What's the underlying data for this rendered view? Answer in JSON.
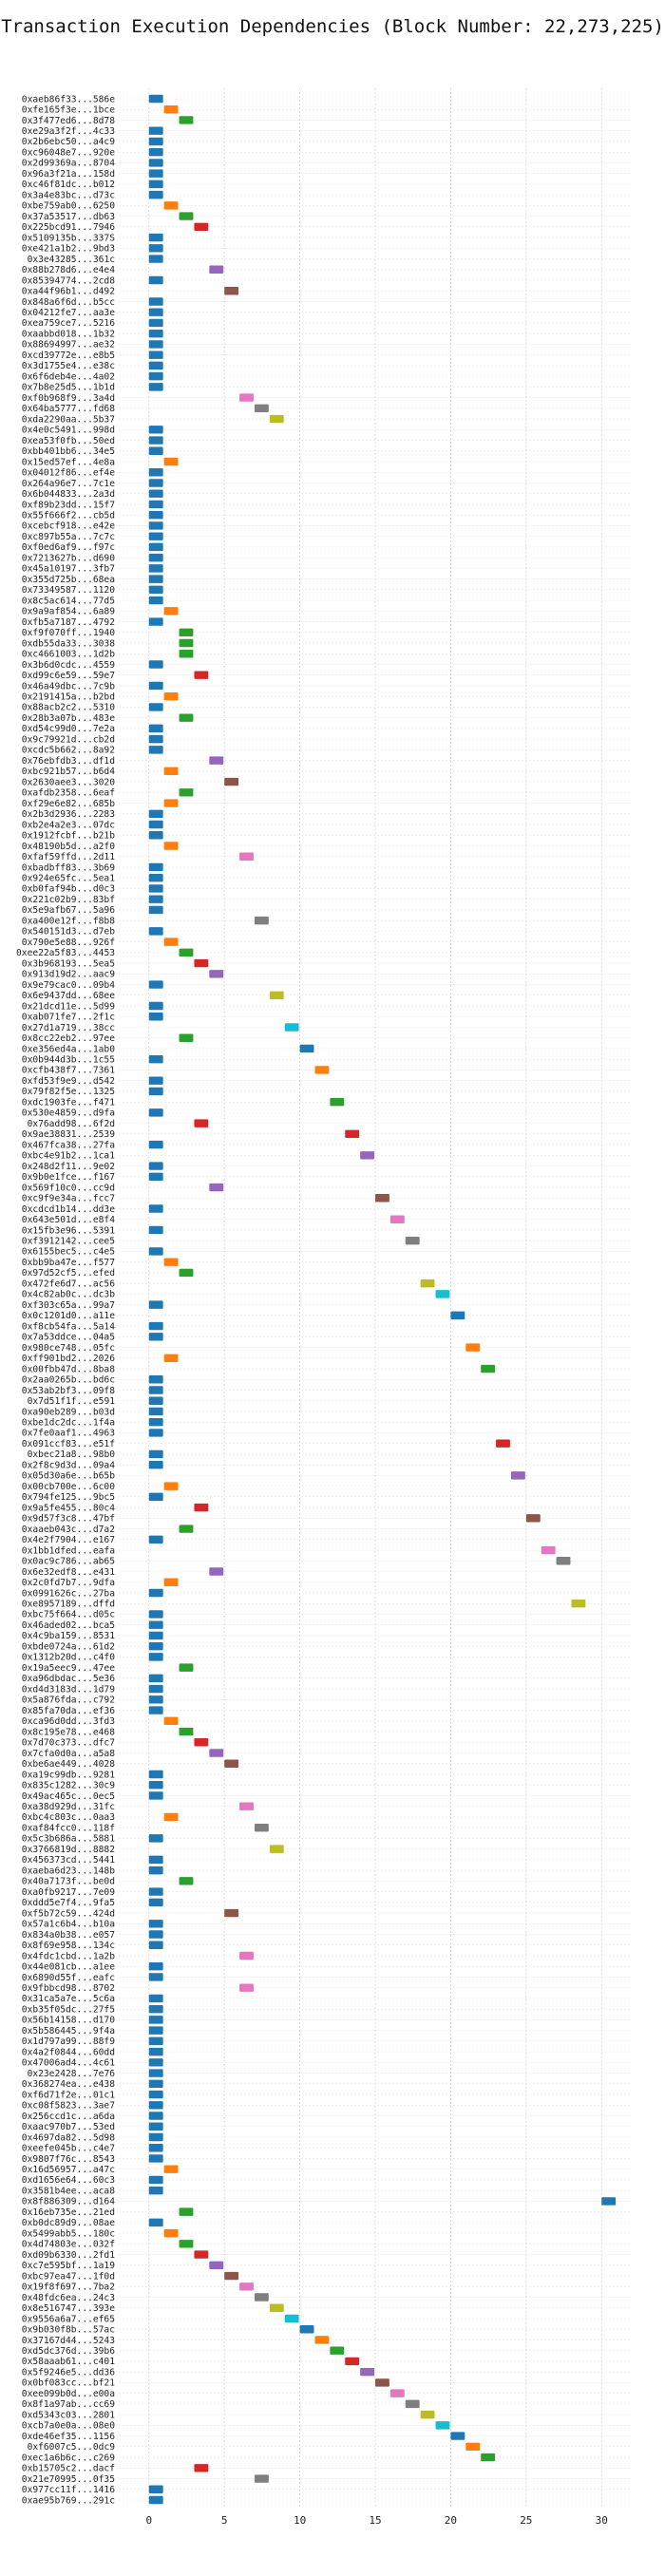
{
  "chart_data": {
    "type": "bar",
    "orientation": "horizontal",
    "title": "Transaction Execution Dependencies (Block Number: 22,273,225)",
    "xlabel": "",
    "ylabel": "",
    "xlim": [
      -2,
      32
    ],
    "xticks": [
      0,
      5,
      10,
      15,
      20,
      25,
      30
    ],
    "grid": true,
    "palette": [
      "#1f77b4",
      "#ff7f0e",
      "#2ca02c",
      "#d62728",
      "#9467bd",
      "#8c564b",
      "#e377c2",
      "#7f7f7f",
      "#bcbd22",
      "#17becf"
    ],
    "categories": [
      "0xaeb86f33...586e",
      "0xfe165f3e...1bce",
      "0x3f477ed6...8d78",
      "0xe29a3f2f...4c33",
      "0x2b6ebc50...a4c9",
      "0xc96048e7...920e",
      "0x2d99369a...8704",
      "0x96a3f21a...158d",
      "0xc46f81dc...b012",
      "0x3a4e83bc...d73c",
      "0xbe759ab0...6250",
      "0x37a53517...db63",
      "0x225bcd91...7946",
      "0x5109135b...337S",
      "0xe421a1b2...9bd3",
      "0x3e43285...361c",
      "0x88b278d6...e4e4",
      "0x85394774...2cd8",
      "0xa44f96b1...d492",
      "0x848a6f6d...b5cc",
      "0x04212fe7...aa3e",
      "0xea759ce7...5216",
      "0xaabbd018...1b32",
      "0x88694997...ae32",
      "0xcd39772e...e8b5",
      "0x3d1755e4...e38c",
      "0x6f6deb4e...4a02",
      "0x7b8e25d5...1b1d",
      "0xf0b968f9...3a4d",
      "0x64ba5777...fd68",
      "0xda2290aa...5b37",
      "0x4e0c5491...998d",
      "0xea53f0fb...50ed",
      "0xbb401bb6...34e5",
      "0x15ed57ef...4e8a",
      "0x04012f86...ef4e",
      "0x264a96e7...7c1e",
      "0x6b044833...2a3d",
      "0xf89b23dd...15f7",
      "0x55f666f2...cb5d",
      "0xcebcf918...e42e",
      "0xc897b55a...7c7c",
      "0xf0ed6af9...f97c",
      "0x7213627b...d690",
      "0x45a10197...3fb7",
      "0x355d725b...68ea",
      "0x73349587...1120",
      "0x8c5ac614...77d5",
      "0x9a9af854...6a89",
      "0xfb5a7187...4792",
      "0xf9f070ff...1940",
      "0xdb55da33...3038",
      "0xc4661003...1d2b",
      "0x3b6d0cdc...4559",
      "0xd99c6e59...59e7",
      "0x46a49dbc...7c9b",
      "0x2191415a...b2bd",
      "0x88acb2c2...5310",
      "0x28b3a07b...483e",
      "0xd54c99d0...7e2a",
      "0x9c79921d...cb2d",
      "0xcdc5b662...8a92",
      "0x76ebfdb3...df1d",
      "0xbc921b57...b6d4",
      "0x2630aee3...3020",
      "0xafdb2358...6eaf",
      "0xf29e6e82...685b",
      "0x2b3d2936...2283",
      "0xb2e4a2e3...07dc",
      "0x1912fcbf...b21b",
      "0x48190b5d...a2f0",
      "0xfaf59ffd...2d11",
      "0xbadbff83...3b69",
      "0x924e65fc...5ea1",
      "0xb0faf94b...d0c3",
      "0x221c02b9...83bf",
      "0x5e9afb67...5a96",
      "0xa400e12f...f8b8",
      "0x540151d3...d7eb",
      "0x790e5e88...926f",
      "0xee22a5f83...4453",
      "0x3b968193...5ea5",
      "0x913d19d2...aac9",
      "0x9e79cac0...09b4",
      "0x6e9437dd...68ee",
      "0x21dcd11e...5d99",
      "0xab071fe7...2f1c",
      "0x27d1a719...38cc",
      "0x8cc22eb2...97ee",
      "0xe356ed4a...1ab0",
      "0x0b944d3b...1c55",
      "0xcfb438f7...7361",
      "0xfd53f9e9...d542",
      "0x79f82f5e...1325",
      "0xdc1903fe...f471",
      "0x530e4859...d9fa",
      "0x76add98...6f2d",
      "0x9ae38831...2539",
      "0x467fca38...27fa",
      "0xbc4e91b2...1ca1",
      "0x248d2f11...9e02",
      "0x9b0e1fce...f167",
      "0x569f10c0...cc9d",
      "0xc9f9e34a...fcc7",
      "0xcdcd1b14...dd3e",
      "0x643e501d...e8f4",
      "0x15fb3e96...5391",
      "0xf3912142...cee5",
      "0x6155bec5...c4e5",
      "0xbb9ba47e...f577",
      "0x97d52cf5...efed",
      "0x472fe6d7...ac56",
      "0x4c82ab0c...dc3b",
      "0xf303c65a...99a7",
      "0x0c1201d0...a11e",
      "0xf8cb54fa...5a14",
      "0x7a53ddce...04a5",
      "0x980ce748...05fc",
      "0xff901bd2...2026",
      "0x00fbb47d...8ba8",
      "0x2aa0265b...bd6c",
      "0x53ab2bf3...09f8",
      "0x7d51f1f...e591",
      "0xa90eb289...b03d",
      "0xbe1dc2dc...1f4a",
      "0x7fe0aaf1...4963",
      "0x091ccf83...e51f",
      "0xbec21a8...98b0",
      "0x2f8c9d3d...09a4",
      "0x05d30a6e...b65b",
      "0x00cb700e...6c00",
      "0x794fe125...9bc5",
      "0x9a5fe455...80c4",
      "0x9d57f3c8...47bf",
      "0xaaeb043c...d7a2",
      "0x4e2f7904...e167",
      "0x1bb1dfed...eafa",
      "0x0ac9c786...ab65",
      "0x6e32edf8...e431",
      "0x2c0fd7b7...9dfa",
      "0x0991626c...27ba",
      "0xe8957189...dffd",
      "0xbc75f664...d05c",
      "0x46aded02...bca5",
      "0x4c9ba159...8531",
      "0xbde0724a...61d2",
      "0x1312b20d...c4f0",
      "0x19a5eec9...47ee",
      "0xa96dbdac...5e36",
      "0xd4d3183d...1d79",
      "0x5a876fda...c792",
      "0x85fa70da...ef36",
      "0xca96d0dd...3fd3",
      "0x8c195e78...e468",
      "0x7d70c373...dfc7",
      "0x7cfa0d0a...a5a8",
      "0xbe6ae449...4028",
      "0xa19c99db...9281",
      "0x835c1282...30c9",
      "0x49ac465c...0ec5",
      "0xa38d929d...31fc",
      "0xbc4c803c...0aa3",
      "0xaf84fcc0...118f",
      "0x5c3b686a...5881",
      "0x3766819d...8882",
      "0x456373cd...5441",
      "0xaeba6d23...148b",
      "0x40a7173f...be0d",
      "0xa0fb9217...7e09",
      "0xddd5e7f4...9fa5",
      "0xf5b72c59...424d",
      "0x57a1c6b4...b10a",
      "0x834a0b38...e057",
      "0x8f69e958...134c",
      "0x4fdc1cbd...1a2b",
      "0x44e081cb...a1ee",
      "0x6890d55f...eafc",
      "0x9fbbcd98...8702",
      "0x31ca5a7e...5c6a",
      "0xb35f05dc...27f5",
      "0x56b14158...d170",
      "0x5b586445...9f4a",
      "0x1d797a99...88f9",
      "0x4a2f0844...60dd",
      "0x47006ad4...4c61",
      "0x23e2428...7e76",
      "0x368274ea...e438",
      "0xf6d71f2e...01c1",
      "0xc08f5823...3ae7",
      "0x256ccd1c...a6da",
      "0xaac970b7...53ed",
      "0x4697da82...5d98",
      "0xeefe045b...c4e7",
      "0x9807f76c...8543",
      "0x16d56957...a47c",
      "0xd1656e64...60c3",
      "0x3581b4ee...aca8",
      "0x8f886309...d164",
      "0x16eb735e...21ed",
      "0xb0dc89d9...08ae",
      "0x5499abb5...180c",
      "0x4d74803e...032f",
      "0xd09b6330...2fd1",
      "0xc7e595bf...1a19",
      "0xbc97ea47...1f0d",
      "0x19f8f697...7ba2",
      "0x48fdc6ea...24c3",
      "0x8e516747...393e",
      "0x9556a6a7...ef65",
      "0x9b030f8b...57ac",
      "0x37167d44...5243",
      "0xd5dc376d...39b6",
      "0x58aaab61...c401",
      "0x5f9246e5...dd36",
      "0x0bf083cc...bf21",
      "0xee099b0d...e00a",
      "0x8f1a97ab...cc69",
      "0xd5343c03...2801",
      "0xcb7a0e0a...08e0",
      "0xde46ef35...1156",
      "0xf6007c5...0dc9",
      "0xec1a6b6c...c269",
      "0xb15705c2...dacf",
      "0x21e70995...0f35",
      "0x977cc11f...1416",
      "0xae95b769...291c"
    ],
    "values": [
      0,
      1,
      2,
      0,
      0,
      0,
      0,
      0,
      0,
      0,
      1,
      2,
      3,
      0,
      0,
      0,
      4,
      0,
      5,
      0,
      0,
      0,
      0,
      0,
      0,
      0,
      0,
      0,
      6,
      7,
      8,
      0,
      0,
      0,
      1,
      0,
      0,
      0,
      0,
      0,
      0,
      0,
      0,
      0,
      0,
      0,
      0,
      0,
      1,
      0,
      2,
      2,
      2,
      0,
      3,
      0,
      1,
      0,
      2,
      0,
      0,
      0,
      4,
      1,
      5,
      2,
      1,
      0,
      0,
      0,
      1,
      6,
      0,
      0,
      0,
      0,
      0,
      7,
      0,
      1,
      2,
      3,
      4,
      0,
      8,
      0,
      0,
      9,
      2,
      10,
      0,
      11,
      0,
      0,
      12,
      0,
      3,
      13,
      0,
      14,
      0,
      0,
      4,
      15,
      0,
      16,
      0,
      17,
      0,
      1,
      2,
      18,
      19,
      0,
      20,
      0,
      0,
      21,
      1,
      22,
      0,
      0,
      0,
      0,
      0,
      0,
      23,
      0,
      0,
      24,
      1,
      0,
      3,
      25,
      2,
      0,
      26,
      27,
      4,
      1,
      0,
      28,
      0,
      0,
      0,
      0,
      0,
      2,
      0,
      0,
      0,
      0,
      1,
      2,
      3,
      4,
      5,
      0,
      0,
      0,
      6,
      1,
      7,
      0,
      8,
      0,
      0,
      2,
      0,
      0,
      5,
      0,
      0,
      0,
      6,
      0,
      0,
      6,
      0,
      0,
      0,
      0,
      0,
      0,
      0,
      0,
      0,
      0,
      0,
      0,
      0,
      0,
      0,
      0,
      1,
      0,
      0,
      30,
      2,
      0,
      1,
      2,
      3,
      4,
      5,
      6,
      7,
      8,
      9,
      10,
      11,
      12,
      13,
      14,
      15,
      16,
      17,
      18,
      19,
      20,
      21,
      22,
      3,
      7,
      0,
      0
    ]
  }
}
